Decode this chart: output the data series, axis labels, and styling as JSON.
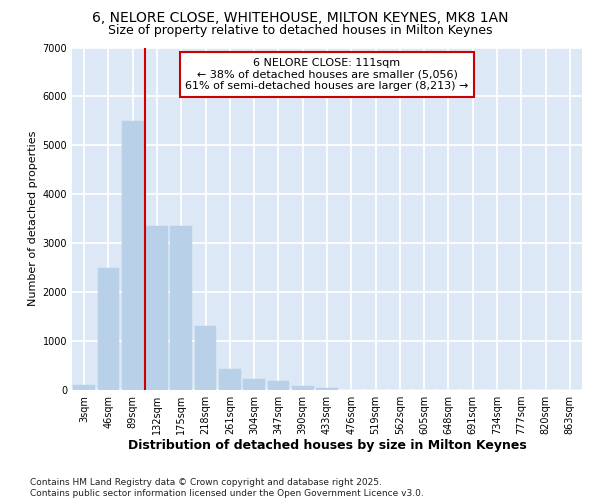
{
  "title": "6, NELORE CLOSE, WHITEHOUSE, MILTON KEYNES, MK8 1AN",
  "subtitle": "Size of property relative to detached houses in Milton Keynes",
  "xlabel": "Distribution of detached houses by size in Milton Keynes",
  "ylabel": "Number of detached properties",
  "categories": [
    "3sqm",
    "46sqm",
    "89sqm",
    "132sqm",
    "175sqm",
    "218sqm",
    "261sqm",
    "304sqm",
    "347sqm",
    "390sqm",
    "433sqm",
    "476sqm",
    "519sqm",
    "562sqm",
    "605sqm",
    "648sqm",
    "691sqm",
    "734sqm",
    "777sqm",
    "820sqm",
    "863sqm"
  ],
  "values": [
    100,
    2500,
    5500,
    3350,
    3350,
    1300,
    420,
    220,
    180,
    80,
    50,
    0,
    0,
    0,
    0,
    0,
    0,
    0,
    0,
    0,
    0
  ],
  "bar_color": "#b8d0e8",
  "bar_edge_color": "#b8d0e8",
  "vline_x_index": 2.5,
  "vline_color": "#cc0000",
  "annotation_title": "6 NELORE CLOSE: 111sqm",
  "annotation_line1": "← 38% of detached houses are smaller (5,056)",
  "annotation_line2": "61% of semi-detached houses are larger (8,213) →",
  "annotation_box_color": "#cc0000",
  "ylim": [
    0,
    7000
  ],
  "yticks": [
    0,
    1000,
    2000,
    3000,
    4000,
    5000,
    6000,
    7000
  ],
  "plot_bg_color": "#dce8f5",
  "fig_bg_color": "#ffffff",
  "grid_color": "#ffffff",
  "footer": "Contains HM Land Registry data © Crown copyright and database right 2025.\nContains public sector information licensed under the Open Government Licence v3.0.",
  "title_fontsize": 10,
  "subtitle_fontsize": 9,
  "xlabel_fontsize": 9,
  "ylabel_fontsize": 8,
  "tick_fontsize": 7,
  "footer_fontsize": 6.5,
  "ann_fontsize": 8
}
